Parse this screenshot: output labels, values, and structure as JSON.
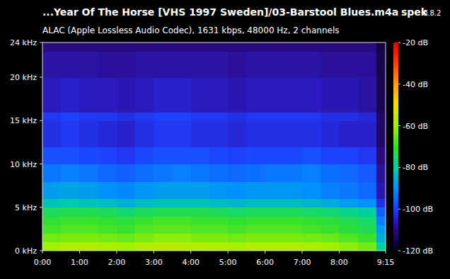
{
  "chart_data": {
    "type": "heatmap",
    "title": "...Year Of The Horse [VHS 1997 Sweden]/03-Barstool Blues.m4a",
    "app_name": "spek",
    "app_version": "0.8.2",
    "subtitle": "ALAC (Apple Lossless Audio Codec), 1631 kbps, 48000 Hz, 2 channels",
    "x_bins": [
      0,
      30,
      60,
      90,
      120,
      150,
      180,
      210,
      240,
      270,
      300,
      330,
      360,
      390,
      420,
      450,
      480,
      510,
      540,
      555
    ],
    "y_bins": [
      0,
      1,
      2,
      3,
      4,
      5,
      6,
      8,
      10,
      12,
      15,
      16,
      20,
      23,
      24
    ],
    "cells": [
      [
        -60,
        -58,
        -58,
        -59,
        -60,
        -58,
        -57,
        -57,
        -58,
        -58,
        -59,
        -58,
        -58,
        -58,
        -59,
        -60,
        -62,
        -64,
        -80
      ],
      [
        -64,
        -63,
        -63,
        -64,
        -65,
        -63,
        -62,
        -62,
        -63,
        -63,
        -64,
        -63,
        -63,
        -63,
        -64,
        -65,
        -67,
        -69,
        -85
      ],
      [
        -68,
        -67,
        -67,
        -68,
        -69,
        -67,
        -66,
        -66,
        -67,
        -67,
        -68,
        -67,
        -67,
        -67,
        -68,
        -69,
        -71,
        -73,
        -88
      ],
      [
        -70,
        -69,
        -69,
        -70,
        -71,
        -69,
        -68,
        -68,
        -69,
        -69,
        -70,
        -69,
        -69,
        -69,
        -70,
        -71,
        -73,
        -75,
        -92
      ],
      [
        -74,
        -73,
        -73,
        -74,
        -76,
        -74,
        -73,
        -73,
        -73,
        -74,
        -75,
        -74,
        -74,
        -74,
        -75,
        -76,
        -78,
        -80,
        -96
      ],
      [
        -82,
        -81,
        -82,
        -83,
        -85,
        -83,
        -82,
        -82,
        -82,
        -83,
        -84,
        -83,
        -83,
        -83,
        -84,
        -86,
        -88,
        -90,
        -102
      ],
      [
        -88,
        -87,
        -88,
        -90,
        -91,
        -89,
        -88,
        -88,
        -88,
        -89,
        -90,
        -89,
        -89,
        -89,
        -90,
        -92,
        -93,
        -95,
        -106
      ],
      [
        -93,
        -92,
        -93,
        -95,
        -96,
        -94,
        -93,
        -92,
        -93,
        -94,
        -95,
        -94,
        -93,
        -93,
        -92,
        -94,
        -95,
        -97,
        -108
      ],
      [
        -98,
        -98,
        -99,
        -100,
        -101,
        -99,
        -98,
        -98,
        -98,
        -99,
        -100,
        -99,
        -99,
        -99,
        -98,
        -100,
        -100,
        -101,
        -110
      ],
      [
        -102,
        -101,
        -102,
        -103,
        -104,
        -102,
        -101,
        -101,
        -102,
        -102,
        -103,
        -102,
        -102,
        -102,
        -102,
        -103,
        -104,
        -104,
        -112
      ],
      [
        -101,
        -100,
        -101,
        -101,
        -102,
        -101,
        -100,
        -100,
        -101,
        -101,
        -102,
        -101,
        -101,
        -101,
        -101,
        -102,
        -102,
        -103,
        -112
      ],
      [
        -105,
        -104,
        -105,
        -105,
        -106,
        -105,
        -104,
        -104,
        -105,
        -105,
        -106,
        -105,
        -105,
        -105,
        -105,
        -106,
        -106,
        -107,
        -114
      ],
      [
        -107,
        -107,
        -107,
        -108,
        -108,
        -107,
        -107,
        -107,
        -107,
        -107,
        -108,
        -107,
        -107,
        -107,
        -107,
        -108,
        -108,
        -108,
        -115
      ],
      [
        -110,
        -110,
        -110,
        -110,
        -110,
        -110,
        -110,
        -110,
        -110,
        -110,
        -110,
        -110,
        -110,
        -110,
        -110,
        -110,
        -110,
        -110,
        -116
      ]
    ],
    "xlim": [
      0,
      555
    ],
    "xticks": [
      {
        "value": 0,
        "label": "0:00"
      },
      {
        "value": 60,
        "label": "1:00"
      },
      {
        "value": 120,
        "label": "2:00"
      },
      {
        "value": 180,
        "label": "3:00"
      },
      {
        "value": 240,
        "label": "4:00"
      },
      {
        "value": 300,
        "label": "5:00"
      },
      {
        "value": 360,
        "label": "6:00"
      },
      {
        "value": 420,
        "label": "7:00"
      },
      {
        "value": 480,
        "label": "8:00"
      },
      {
        "value": 555,
        "label": "9:15"
      }
    ],
    "ylim": [
      0,
      24
    ],
    "yticks": [
      {
        "value": 0,
        "label": "0 kHz"
      },
      {
        "value": 5,
        "label": "5 kHz"
      },
      {
        "value": 10,
        "label": "10 kHz"
      },
      {
        "value": 15,
        "label": "15 kHz"
      },
      {
        "value": 20,
        "label": "20 kHz"
      },
      {
        "value": 24,
        "label": "24 kHz"
      }
    ],
    "colorbar": {
      "range": [
        -120,
        -20
      ],
      "ticks": [
        {
          "value": -20,
          "label": "-20 dB"
        },
        {
          "value": -40,
          "label": "-40 dB"
        },
        {
          "value": -60,
          "label": "-60 dB"
        },
        {
          "value": -80,
          "label": "-80 dB"
        },
        {
          "value": -100,
          "label": "-100 dB"
        },
        {
          "value": -120,
          "label": "-120 dB"
        }
      ]
    }
  }
}
